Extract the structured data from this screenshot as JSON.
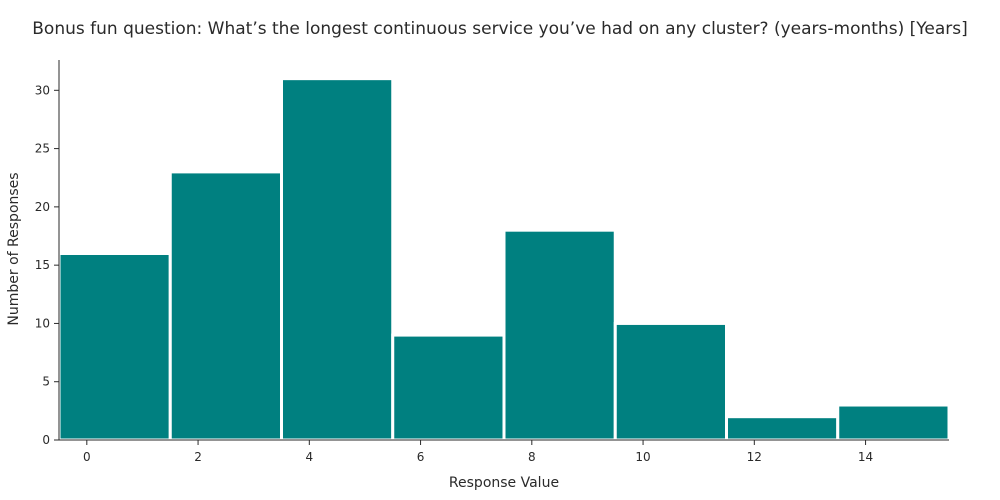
{
  "chart_data": {
    "type": "bar",
    "title": "Bonus fun question: What’s the longest continuous service you’ve had on any cluster? (years-months) [Years]",
    "xlabel": "Response Value",
    "ylabel": "Number of Responses",
    "bins": [
      {
        "start": -0.5,
        "end": 1.5,
        "value": 16
      },
      {
        "start": 1.5,
        "end": 3.5,
        "value": 23
      },
      {
        "start": 3.5,
        "end": 5.5,
        "value": 31
      },
      {
        "start": 5.5,
        "end": 7.5,
        "value": 9
      },
      {
        "start": 7.5,
        "end": 9.5,
        "value": 18
      },
      {
        "start": 9.5,
        "end": 11.5,
        "value": 10
      },
      {
        "start": 11.5,
        "end": 13.5,
        "value": 2
      },
      {
        "start": 13.5,
        "end": 15.5,
        "value": 3
      }
    ],
    "xticks": [
      "0",
      "2",
      "4",
      "6",
      "8",
      "10",
      "12",
      "14"
    ],
    "yticks": [
      "0",
      "5",
      "10",
      "15",
      "20",
      "25",
      "30"
    ],
    "xlim": [
      -0.5,
      15.5
    ],
    "ylim": [
      0,
      32.6
    ],
    "bar_color": "#008080",
    "grid": false
  }
}
